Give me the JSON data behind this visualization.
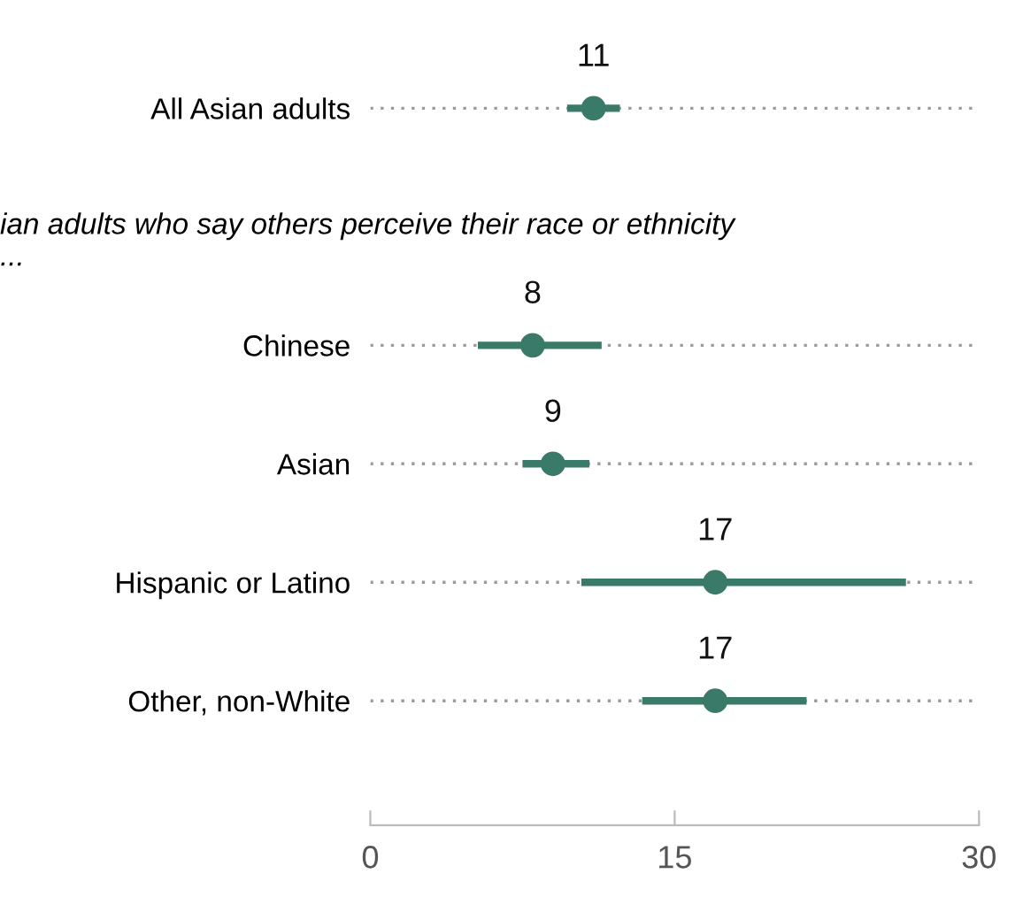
{
  "chart_data": {
    "type": "scatter",
    "orientation": "horizontal",
    "categories": [
      "All Asian adults",
      null,
      "Chinese",
      "Asian",
      "Hispanic or Latino",
      "Other, non-White"
    ],
    "values": [
      11,
      null,
      8,
      9,
      17,
      17
    ],
    "errors": [
      [
        9.7,
        12.3
      ],
      null,
      [
        5.3,
        11.4
      ],
      [
        7.5,
        10.8
      ],
      [
        10.4,
        26.4
      ],
      [
        13.4,
        21.5
      ]
    ],
    "color": "#3a7a68",
    "data_labels": true,
    "marker": "circle",
    "grid": "y",
    "xlim": [
      0,
      30
    ],
    "xticks": [
      0,
      15,
      30
    ],
    "annotations": [
      "ian adults who say others perceive their race or ethnicity\n..."
    ]
  }
}
